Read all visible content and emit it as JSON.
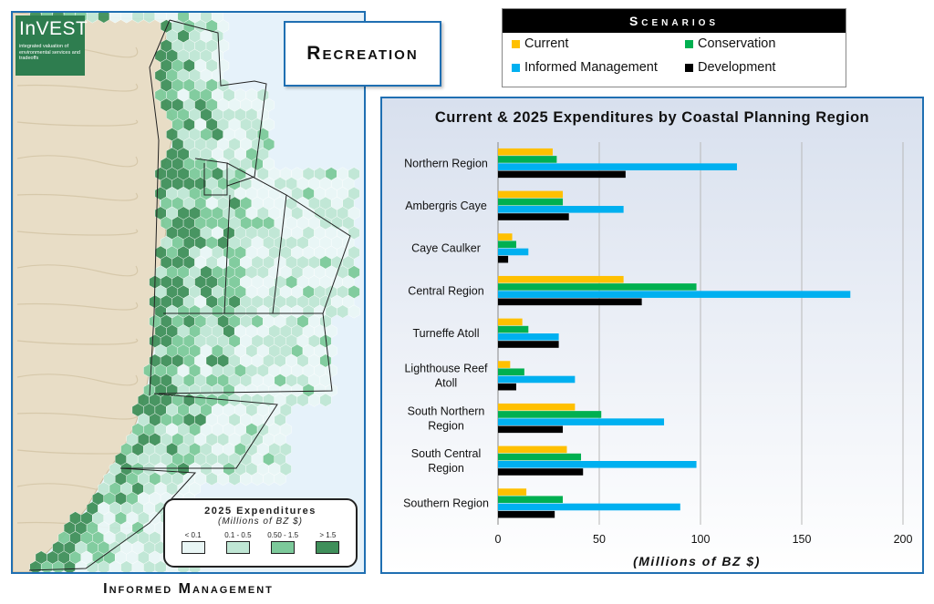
{
  "logo": {
    "name": "InVEST",
    "tagline": "integrated valuation of environmental services and tradeoffs"
  },
  "title": "Recreation",
  "scenarios": {
    "header": "Scenarios",
    "items": [
      {
        "label": "Current",
        "color": "#ffc000"
      },
      {
        "label": "Conservation",
        "color": "#00b050"
      },
      {
        "label": "Informed Management",
        "color": "#00b0f0"
      },
      {
        "label": "Development",
        "color": "#000000"
      }
    ]
  },
  "map": {
    "caption": "Informed Management",
    "legend": {
      "title": "2025 Expenditures",
      "subtitle": "(Millions of BZ $)",
      "classes": [
        {
          "label": "< 0.1",
          "color": "#e9f6f5"
        },
        {
          "label": "0.1 - 0.5",
          "color": "#bfe6d4"
        },
        {
          "label": "0.50 - 1.5",
          "color": "#7cc99a"
        },
        {
          "label": "> 1.5",
          "color": "#3f8f5a"
        }
      ]
    }
  },
  "chart_data": {
    "type": "bar",
    "orientation": "horizontal",
    "title": "Current & 2025 Expenditures by Coastal Planning Region",
    "xlabel": "(Millions of BZ $)",
    "ylabel": "",
    "xlim": [
      0,
      200
    ],
    "xticks": [
      0,
      50,
      100,
      150,
      200
    ],
    "grid": true,
    "categories": [
      "Northern Region",
      "Ambergris Caye",
      "Caye Caulker",
      "Central Region",
      "Turneffe Atoll",
      "Lighthouse Reef Atoll",
      "South Northern Region",
      "South Central Region",
      "Southern Region"
    ],
    "series": [
      {
        "name": "Current",
        "color": "#ffc000",
        "values": [
          27,
          32,
          7,
          62,
          12,
          6,
          38,
          34,
          14
        ]
      },
      {
        "name": "Conservation",
        "color": "#00b050",
        "values": [
          29,
          32,
          9,
          98,
          15,
          13,
          51,
          41,
          32
        ]
      },
      {
        "name": "Informed Management",
        "color": "#00b0f0",
        "values": [
          118,
          62,
          15,
          174,
          30,
          38,
          82,
          98,
          90
        ]
      },
      {
        "name": "Development",
        "color": "#000000",
        "values": [
          63,
          35,
          5,
          71,
          30,
          9,
          32,
          42,
          28
        ]
      }
    ]
  }
}
